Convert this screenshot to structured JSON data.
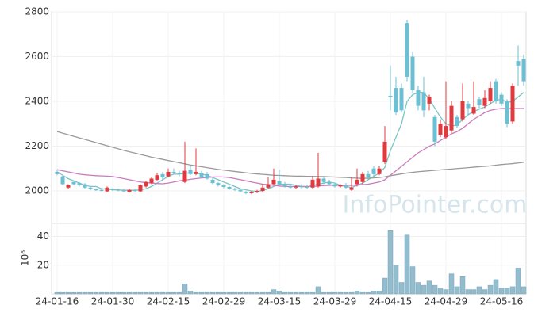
{
  "chart_data": {
    "type": "candlestick",
    "categories": [
      "24-01-16",
      null,
      null,
      null,
      null,
      null,
      null,
      null,
      null,
      null,
      "24-01-30",
      null,
      null,
      null,
      null,
      null,
      null,
      null,
      null,
      null,
      "24-02-15",
      null,
      null,
      null,
      null,
      null,
      null,
      null,
      null,
      null,
      "24-02-29",
      null,
      null,
      null,
      null,
      null,
      null,
      null,
      null,
      null,
      "24-03-15",
      null,
      null,
      null,
      null,
      null,
      null,
      null,
      null,
      null,
      "24-03-29",
      null,
      null,
      null,
      null,
      null,
      null,
      null,
      null,
      null,
      "24-04-15",
      null,
      null,
      null,
      null,
      null,
      null,
      null,
      null,
      null,
      "24-04-29",
      null,
      null,
      null,
      null,
      null,
      null,
      null,
      null,
      null,
      "24-05-16",
      null,
      null,
      null,
      null
    ],
    "open": [
      2085,
      2065,
      2015,
      2040,
      2035,
      2030,
      2015,
      2008,
      2005,
      1998,
      2008,
      2005,
      2003,
      1995,
      2003,
      1998,
      2020,
      2035,
      2050,
      2075,
      2065,
      2085,
      2080,
      2040,
      2095,
      2075,
      2080,
      2075,
      2050,
      2035,
      2025,
      2018,
      2010,
      2005,
      1995,
      1990,
      1995,
      2000,
      2015,
      2030,
      2045,
      2030,
      2020,
      2015,
      2020,
      2018,
      2015,
      2020,
      2055,
      2040,
      2030,
      2020,
      2025,
      2005,
      2030,
      2040,
      2075,
      2100,
      2075,
      2130,
      2425,
      2460,
      2460,
      2750,
      2600,
      2450,
      2440,
      2390,
      2330,
      2250,
      2240,
      2270,
      2330,
      2320,
      2390,
      2345,
      2410,
      2380,
      2400,
      2490,
      2430,
      2400,
      2310,
      2580,
      2590
    ],
    "high": [
      2095,
      2068,
      2030,
      2045,
      2040,
      2035,
      2020,
      2012,
      2010,
      2020,
      2012,
      2010,
      2008,
      2010,
      2008,
      2030,
      2045,
      2060,
      2080,
      2085,
      2100,
      2100,
      2090,
      2220,
      2110,
      2190,
      2090,
      2085,
      2060,
      2040,
      2030,
      2022,
      2015,
      2010,
      2000,
      2000,
      2005,
      2030,
      2060,
      2100,
      2095,
      2040,
      2030,
      2025,
      2030,
      2025,
      2065,
      2170,
      2060,
      2050,
      2035,
      2030,
      2035,
      2060,
      2100,
      2085,
      2090,
      2110,
      2110,
      2290,
      2560,
      2510,
      2480,
      2765,
      2620,
      2470,
      2510,
      2430,
      2340,
      2320,
      2490,
      2400,
      2340,
      2480,
      2400,
      2490,
      2420,
      2450,
      2490,
      2500,
      2440,
      2410,
      2480,
      2650,
      2610
    ],
    "low": [
      2070,
      2025,
      2010,
      2025,
      2020,
      2010,
      2003,
      2000,
      1998,
      1995,
      2000,
      1998,
      1995,
      1992,
      1997,
      1995,
      2015,
      2030,
      2045,
      2050,
      2060,
      2075,
      2065,
      2035,
      2070,
      2070,
      2055,
      2050,
      2030,
      2020,
      2012,
      2005,
      2000,
      1995,
      1985,
      1985,
      1990,
      1995,
      2010,
      2025,
      2025,
      2015,
      2010,
      2010,
      2012,
      2010,
      2010,
      2015,
      2030,
      2025,
      2015,
      2015,
      2010,
      2000,
      2020,
      2030,
      2050,
      2065,
      2070,
      2120,
      2360,
      2340,
      2350,
      2490,
      2440,
      2360,
      2330,
      2360,
      2200,
      2240,
      2230,
      2260,
      2280,
      2310,
      2340,
      2340,
      2370,
      2370,
      2390,
      2390,
      2380,
      2285,
      2300,
      2470,
      2470
    ],
    "close": [
      2075,
      2030,
      2025,
      2030,
      2025,
      2015,
      2008,
      2003,
      2000,
      2015,
      2005,
      2003,
      1998,
      2005,
      2000,
      2025,
      2040,
      2055,
      2070,
      2060,
      2085,
      2080,
      2075,
      2090,
      2075,
      2085,
      2060,
      2055,
      2035,
      2025,
      2018,
      2010,
      2005,
      1998,
      1990,
      1993,
      2000,
      2015,
      2030,
      2050,
      2030,
      2020,
      2015,
      2020,
      2018,
      2015,
      2050,
      2055,
      2040,
      2030,
      2020,
      2025,
      2015,
      2015,
      2050,
      2075,
      2060,
      2075,
      2100,
      2220,
      2420,
      2350,
      2360,
      2510,
      2450,
      2380,
      2360,
      2420,
      2220,
      2300,
      2290,
      2380,
      2290,
      2400,
      2370,
      2375,
      2385,
      2415,
      2460,
      2400,
      2390,
      2300,
      2470,
      2560,
      2490
    ],
    "up_color": "#e0393e",
    "down_color": "#6cc0d3",
    "moving_averages": [
      {
        "color": "#7cc4c4",
        "values": [
          2085,
          2070,
          2055,
          2045,
          2035,
          2025,
          2020,
          2020,
          2010,
          2008,
          2005,
          2005,
          2003,
          2003,
          2003,
          2005,
          2010,
          2020,
          2035,
          2050,
          2065,
          2075,
          2075,
          2080,
          2080,
          2080,
          2075,
          2070,
          2060,
          2050,
          2040,
          2030,
          2020,
          2010,
          2005,
          2000,
          1998,
          2002,
          2010,
          2020,
          2030,
          2030,
          2030,
          2025,
          2020,
          2018,
          2025,
          2030,
          2035,
          2040,
          2035,
          2025,
          2020,
          2015,
          2025,
          2035,
          2050,
          2065,
          2080,
          2105,
          2180,
          2240,
          2300,
          2400,
          2430,
          2440,
          2440,
          2410,
          2370,
          2330,
          2300,
          2290,
          2295,
          2320,
          2340,
          2355,
          2365,
          2375,
          2390,
          2405,
          2410,
          2395,
          2400,
          2420,
          2440
        ]
      },
      {
        "color": "#c97bbf",
        "values": [
          2095,
          2090,
          2085,
          2080,
          2075,
          2072,
          2070,
          2068,
          2067,
          2066,
          2064,
          2060,
          2055,
          2050,
          2045,
          2040,
          2037,
          2035,
          2033,
          2032,
          2035,
          2040,
          2045,
          2048,
          2052,
          2055,
          2058,
          2060,
          2062,
          2063,
          2062,
          2060,
          2055,
          2050,
          2045,
          2040,
          2035,
          2030,
          2028,
          2025,
          2022,
          2020,
          2020,
          2020,
          2020,
          2020,
          2020,
          2022,
          2024,
          2025,
          2025,
          2025,
          2025,
          2025,
          2026,
          2028,
          2030,
          2035,
          2040,
          2050,
          2070,
          2090,
          2110,
          2130,
          2150,
          2170,
          2185,
          2200,
          2210,
          2225,
          2240,
          2255,
          2265,
          2280,
          2300,
          2320,
          2335,
          2350,
          2360,
          2365,
          2368,
          2368,
          2368,
          2368,
          2368
        ]
      },
      {
        "color": "#9a9a9a",
        "values": [
          2265,
          2258,
          2251,
          2244,
          2237,
          2230,
          2223,
          2216,
          2209,
          2202,
          2195,
          2188,
          2181,
          2175,
          2169,
          2163,
          2157,
          2151,
          2146,
          2141,
          2136,
          2131,
          2126,
          2121,
          2116,
          2112,
          2108,
          2104,
          2100,
          2096,
          2093,
          2090,
          2087,
          2084,
          2081,
          2078,
          2076,
          2074,
          2072,
          2070,
          2069,
          2068,
          2067,
          2066,
          2066,
          2065,
          2065,
          2064,
          2064,
          2063,
          2062,
          2061,
          2060,
          2058,
          2057,
          2056,
          2057,
          2058,
          2060,
          2063,
          2068,
          2072,
          2076,
          2080,
          2083,
          2086,
          2088,
          2090,
          2092,
          2094,
          2096,
          2098,
          2100,
          2102,
          2104,
          2106,
          2108,
          2110,
          2112,
          2115,
          2118,
          2120,
          2122,
          2125,
          2128
        ]
      }
    ],
    "ylim": [
      1855,
      2800
    ],
    "yticks": [
      2000,
      2200,
      2400,
      2600,
      2800
    ],
    "volume": {
      "values": [
        1,
        1,
        1,
        1,
        1,
        1,
        1,
        1,
        1,
        1,
        1,
        1,
        1,
        1,
        1,
        1,
        1,
        1,
        1,
        1,
        1,
        1,
        1,
        7,
        2,
        1,
        1,
        1,
        1,
        1,
        1,
        1,
        1,
        1,
        1,
        1,
        1,
        1,
        1,
        3,
        2,
        1,
        1,
        1,
        1,
        1,
        1,
        5,
        1,
        1,
        1,
        1,
        1,
        1,
        2,
        1,
        1,
        2,
        2,
        11,
        44,
        20,
        8,
        41,
        19,
        8,
        6,
        9,
        6,
        4,
        3,
        14,
        5,
        12,
        3,
        3,
        5,
        3,
        6,
        10,
        4,
        4,
        5,
        18,
        5
      ],
      "color": "#93bccd",
      "ylim": [
        0,
        48
      ],
      "yticks": [
        20,
        40
      ],
      "ylabel": "10⁶"
    },
    "watermark": "InfoPointer.com"
  }
}
